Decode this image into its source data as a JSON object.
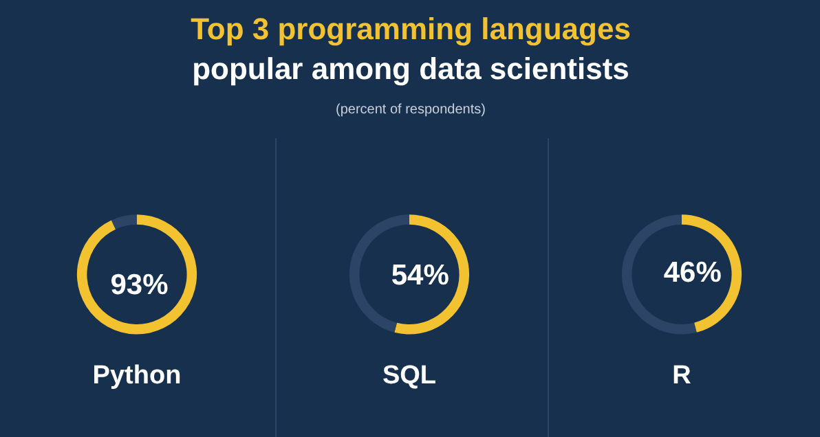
{
  "chart_data": [
    {
      "type": "other",
      "title": "Top 3 programming languages\npopular among data scientists",
      "subtitle": "(percent of respondents)"
    },
    {
      "type": "donut",
      "categories": [
        "Python",
        null
      ],
      "values": [
        93,
        7
      ],
      "colors": [
        "#f2c230",
        "#2c4566"
      ],
      "value_labels": [
        "93%",
        null
      ]
    },
    {
      "type": "donut",
      "categories": [
        "SQL",
        null
      ],
      "values": [
        54,
        46
      ],
      "colors": [
        "#f2c230",
        "#2c4566"
      ],
      "value_labels": [
        "54%",
        null
      ]
    },
    {
      "type": "donut",
      "categories": [
        "R",
        null
      ],
      "values": [
        46,
        54
      ],
      "colors": [
        "#f2c230",
        "#2c4566"
      ],
      "value_labels": [
        "46%",
        null
      ]
    }
  ]
}
